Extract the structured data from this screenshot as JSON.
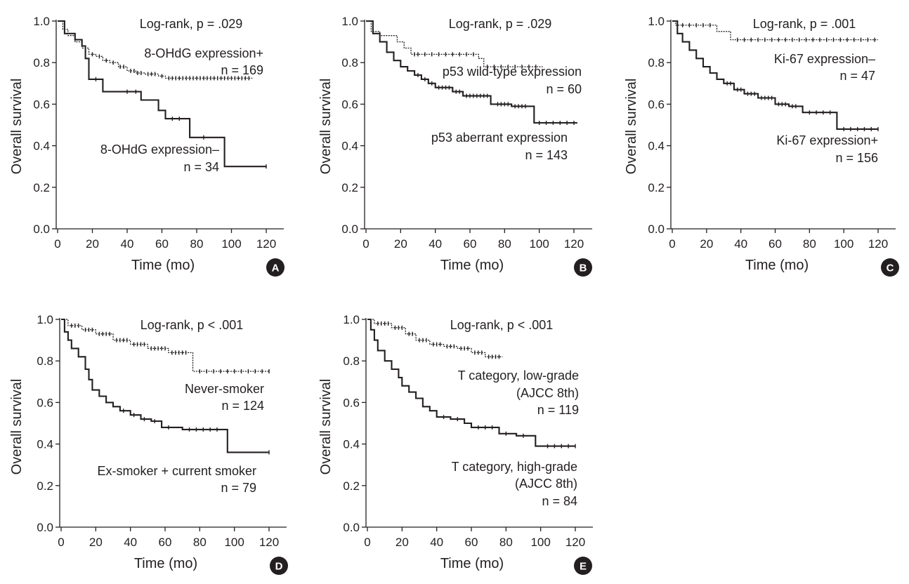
{
  "chart_data": [
    {
      "type": "line",
      "chart_style": "kaplan-meier",
      "panel": "A",
      "title": "",
      "xlabel": "Time (mo)",
      "ylabel": "Overall survival",
      "xlim": [
        0,
        130
      ],
      "ylim": [
        0,
        1.0
      ],
      "xticks": [
        "0",
        "20",
        "40",
        "60",
        "80",
        "100",
        "120"
      ],
      "yticks": [
        "0.0",
        "0.2",
        "0.4",
        "0.6",
        "0.8",
        "1.0"
      ],
      "annotations": [
        "Log-rank, p = .029"
      ],
      "series": [
        {
          "name": "8-OHdG expression+",
          "n_label": "n = 169",
          "style": "dotted",
          "steps": [
            [
              0,
              1.0
            ],
            [
              3,
              0.96
            ],
            [
              6,
              0.93
            ],
            [
              10,
              0.9
            ],
            [
              14,
              0.87
            ],
            [
              18,
              0.84
            ],
            [
              22,
              0.83
            ],
            [
              26,
              0.81
            ],
            [
              30,
              0.8
            ],
            [
              35,
              0.78
            ],
            [
              40,
              0.76
            ],
            [
              45,
              0.75
            ],
            [
              50,
              0.745
            ],
            [
              58,
              0.735
            ],
            [
              62,
              0.725
            ],
            [
              112,
              0.725
            ]
          ],
          "censors": [
            20,
            24,
            28,
            32,
            36,
            38,
            42,
            44,
            46,
            48,
            52,
            54,
            56,
            60,
            64,
            66,
            68,
            70,
            72,
            74,
            76,
            78,
            80,
            82,
            84,
            86,
            88,
            90,
            92,
            94,
            96,
            98,
            100,
            102,
            104,
            106,
            108,
            110
          ]
        },
        {
          "name": "8-OHdG expression–",
          "n_label": "n = 34",
          "style": "solid",
          "steps": [
            [
              0,
              1.0
            ],
            [
              4,
              0.94
            ],
            [
              10,
              0.91
            ],
            [
              14,
              0.88
            ],
            [
              16,
              0.82
            ],
            [
              18,
              0.72
            ],
            [
              26,
              0.66
            ],
            [
              48,
              0.62
            ],
            [
              58,
              0.57
            ],
            [
              62,
              0.53
            ],
            [
              76,
              0.44
            ],
            [
              96,
              0.3
            ],
            [
              120,
              0.3
            ]
          ],
          "censors": [
            22,
            40,
            45,
            66,
            70,
            84,
            120
          ]
        }
      ]
    },
    {
      "type": "line",
      "chart_style": "kaplan-meier",
      "panel": "B",
      "title": "",
      "xlabel": "Time (mo)",
      "ylabel": "Overall survival",
      "xlim": [
        0,
        130
      ],
      "ylim": [
        0,
        1.0
      ],
      "xticks": [
        "0",
        "20",
        "40",
        "60",
        "80",
        "100",
        "120"
      ],
      "yticks": [
        "0.0",
        "0.2",
        "0.4",
        "0.6",
        "0.8",
        "1.0"
      ],
      "annotations": [
        "Log-rank, p = .029"
      ],
      "series": [
        {
          "name": "p53 wild-type expression",
          "n_label": "n = 60",
          "style": "dotted",
          "steps": [
            [
              0,
              1.0
            ],
            [
              3,
              0.95
            ],
            [
              8,
              0.93
            ],
            [
              18,
              0.9
            ],
            [
              22,
              0.87
            ],
            [
              26,
              0.84
            ],
            [
              65,
              0.82
            ],
            [
              68,
              0.78
            ],
            [
              102,
              0.78
            ]
          ],
          "censors": [
            28,
            30,
            34,
            38,
            42,
            46,
            50,
            54,
            58,
            62,
            70,
            74,
            78,
            82,
            86,
            90,
            94,
            98
          ]
        },
        {
          "name": "p53 aberrant expression",
          "n_label": "n = 143",
          "style": "solid",
          "steps": [
            [
              0,
              1.0
            ],
            [
              4,
              0.94
            ],
            [
              8,
              0.9
            ],
            [
              12,
              0.85
            ],
            [
              16,
              0.81
            ],
            [
              20,
              0.78
            ],
            [
              24,
              0.76
            ],
            [
              28,
              0.74
            ],
            [
              32,
              0.72
            ],
            [
              36,
              0.7
            ],
            [
              40,
              0.68
            ],
            [
              50,
              0.66
            ],
            [
              56,
              0.64
            ],
            [
              72,
              0.6
            ],
            [
              84,
              0.59
            ],
            [
              97,
              0.51
            ],
            [
              122,
              0.51
            ]
          ],
          "censors": [
            30,
            34,
            38,
            42,
            44,
            46,
            48,
            52,
            54,
            58,
            60,
            62,
            64,
            66,
            68,
            70,
            76,
            78,
            80,
            82,
            86,
            88,
            90,
            92,
            100,
            104,
            108,
            112,
            116,
            120
          ]
        }
      ]
    },
    {
      "type": "line",
      "chart_style": "kaplan-meier",
      "panel": "C",
      "title": "",
      "xlabel": "Time (mo)",
      "ylabel": "Overall survival",
      "xlim": [
        0,
        130
      ],
      "ylim": [
        0,
        1.0
      ],
      "xticks": [
        "0",
        "20",
        "40",
        "60",
        "80",
        "100",
        "120"
      ],
      "yticks": [
        "0.0",
        "0.2",
        "0.4",
        "0.6",
        "0.8",
        "1.0"
      ],
      "annotations": [
        "Log-rank, p = .001"
      ],
      "series": [
        {
          "name": "Ki-67 expression–",
          "n_label": "n = 47",
          "style": "dotted",
          "steps": [
            [
              0,
              1.0
            ],
            [
              2,
              0.98
            ],
            [
              26,
              0.95
            ],
            [
              34,
              0.91
            ],
            [
              120,
              0.91
            ]
          ],
          "censors": [
            6,
            10,
            14,
            18,
            22,
            38,
            42,
            46,
            50,
            54,
            58,
            62,
            66,
            70,
            74,
            78,
            82,
            86,
            90,
            94,
            98,
            102,
            106,
            110,
            114,
            118
          ]
        },
        {
          "name": "Ki-67 expression+",
          "n_label": "n = 156",
          "style": "solid",
          "steps": [
            [
              0,
              1.0
            ],
            [
              3,
              0.94
            ],
            [
              6,
              0.9
            ],
            [
              10,
              0.86
            ],
            [
              14,
              0.82
            ],
            [
              18,
              0.78
            ],
            [
              22,
              0.75
            ],
            [
              26,
              0.72
            ],
            [
              30,
              0.7
            ],
            [
              36,
              0.67
            ],
            [
              42,
              0.65
            ],
            [
              50,
              0.63
            ],
            [
              60,
              0.6
            ],
            [
              68,
              0.59
            ],
            [
              76,
              0.56
            ],
            [
              96,
              0.48
            ],
            [
              120,
              0.48
            ]
          ],
          "censors": [
            32,
            34,
            38,
            40,
            44,
            46,
            48,
            52,
            54,
            56,
            58,
            62,
            64,
            66,
            70,
            72,
            80,
            84,
            88,
            92,
            100,
            104,
            108,
            112,
            116,
            120
          ]
        }
      ]
    },
    {
      "type": "line",
      "chart_style": "kaplan-meier",
      "panel": "D",
      "title": "",
      "xlabel": "Time (mo)",
      "ylabel": "Overall survival",
      "xlim": [
        0,
        130
      ],
      "ylim": [
        0,
        1.0
      ],
      "xticks": [
        "0",
        "20",
        "40",
        "60",
        "80",
        "100",
        "120"
      ],
      "yticks": [
        "0.0",
        "0.2",
        "0.4",
        "0.6",
        "0.8",
        "1.0"
      ],
      "annotations": [
        "Log-rank, p < .001"
      ],
      "series": [
        {
          "name": "Never-smoker",
          "n_label": "n = 124",
          "style": "dotted",
          "steps": [
            [
              0,
              1.0
            ],
            [
              4,
              0.97
            ],
            [
              12,
              0.95
            ],
            [
              20,
              0.93
            ],
            [
              30,
              0.9
            ],
            [
              40,
              0.88
            ],
            [
              50,
              0.86
            ],
            [
              62,
              0.84
            ],
            [
              76,
              0.75
            ],
            [
              120,
              0.75
            ]
          ],
          "censors": [
            6,
            8,
            10,
            14,
            16,
            18,
            22,
            24,
            26,
            28,
            32,
            34,
            36,
            38,
            42,
            44,
            46,
            48,
            52,
            54,
            56,
            58,
            60,
            64,
            66,
            68,
            70,
            72,
            80,
            84,
            88,
            92,
            96,
            100,
            104,
            108,
            112,
            116,
            120
          ]
        },
        {
          "name": "Ex-smoker + current smoker",
          "n_label": "n = 79",
          "style": "solid",
          "steps": [
            [
              0,
              1.0
            ],
            [
              2,
              0.94
            ],
            [
              4,
              0.9
            ],
            [
              6,
              0.86
            ],
            [
              10,
              0.82
            ],
            [
              14,
              0.76
            ],
            [
              16,
              0.71
            ],
            [
              18,
              0.66
            ],
            [
              22,
              0.63
            ],
            [
              26,
              0.6
            ],
            [
              30,
              0.58
            ],
            [
              34,
              0.56
            ],
            [
              40,
              0.54
            ],
            [
              46,
              0.52
            ],
            [
              52,
              0.51
            ],
            [
              58,
              0.48
            ],
            [
              66,
              0.48
            ],
            [
              70,
              0.47
            ],
            [
              96,
              0.36
            ],
            [
              120,
              0.36
            ]
          ],
          "censors": [
            36,
            42,
            48,
            54,
            62,
            74,
            78,
            82,
            86,
            90,
            120
          ]
        }
      ]
    },
    {
      "type": "line",
      "chart_style": "kaplan-meier",
      "panel": "E",
      "title": "",
      "xlabel": "Time (mo)",
      "ylabel": "Overall survival",
      "xlim": [
        0,
        130
      ],
      "ylim": [
        0,
        1.0
      ],
      "xticks": [
        "0",
        "20",
        "40",
        "60",
        "80",
        "100",
        "120"
      ],
      "yticks": [
        "0.0",
        "0.2",
        "0.4",
        "0.6",
        "0.8",
        "1.0"
      ],
      "annotations": [
        "Log-rank, p < .001"
      ],
      "series": [
        {
          "name": "T category, low-grade (AJCC 8th)",
          "n_label": "n = 119",
          "style": "dotted",
          "steps": [
            [
              0,
              1.0
            ],
            [
              4,
              0.98
            ],
            [
              14,
              0.96
            ],
            [
              22,
              0.93
            ],
            [
              28,
              0.9
            ],
            [
              36,
              0.88
            ],
            [
              44,
              0.87
            ],
            [
              52,
              0.86
            ],
            [
              60,
              0.84
            ],
            [
              68,
              0.82
            ],
            [
              78,
              0.82
            ]
          ],
          "censors": [
            6,
            8,
            10,
            12,
            16,
            18,
            20,
            24,
            26,
            30,
            32,
            34,
            38,
            40,
            42,
            46,
            48,
            50,
            54,
            56,
            58,
            62,
            64,
            66,
            70,
            72,
            74,
            76
          ]
        },
        {
          "name": "T category, high-grade (AJCC 8th)",
          "n_label": "n = 84",
          "style": "solid",
          "steps": [
            [
              0,
              1.0
            ],
            [
              2,
              0.95
            ],
            [
              4,
              0.9
            ],
            [
              6,
              0.85
            ],
            [
              10,
              0.8
            ],
            [
              14,
              0.76
            ],
            [
              18,
              0.72
            ],
            [
              20,
              0.68
            ],
            [
              24,
              0.65
            ],
            [
              28,
              0.62
            ],
            [
              32,
              0.58
            ],
            [
              36,
              0.56
            ],
            [
              40,
              0.53
            ],
            [
              48,
              0.52
            ],
            [
              56,
              0.5
            ],
            [
              60,
              0.48
            ],
            [
              76,
              0.45
            ],
            [
              86,
              0.44
            ],
            [
              97,
              0.39
            ],
            [
              120,
              0.39
            ]
          ],
          "censors": [
            44,
            52,
            64,
            68,
            72,
            80,
            90,
            104,
            108,
            112,
            116,
            120
          ]
        }
      ]
    }
  ],
  "panel_labels": [
    {
      "title": "Log-rank, p = .029",
      "labels": [
        "8-OHdG expression+",
        "n = 169",
        "8-OHdG expression–",
        "n = 34"
      ],
      "badge": "A"
    },
    {
      "title": "Log-rank, p = .029",
      "labels": [
        "p53 wild-type expression",
        "n = 60",
        "p53 aberrant expression",
        "n = 143"
      ],
      "badge": "B"
    },
    {
      "title": "Log-rank, p = .001",
      "labels": [
        "Ki-67 expression–",
        "n = 47",
        "Ki-67 expression+",
        "n = 156"
      ],
      "badge": "C"
    },
    {
      "title": "Log-rank, p < .001",
      "labels": [
        "Never-smoker",
        "n = 124",
        "Ex-smoker + current smoker",
        "n = 79"
      ],
      "badge": "D"
    },
    {
      "title": "Log-rank, p < .001",
      "labels": [
        "T category, low-grade",
        "(AJCC 8th)",
        "n = 119",
        "T category, high-grade",
        "(AJCC 8th)",
        "n = 84"
      ],
      "badge": "E"
    }
  ],
  "colors": {
    "ink": "#231f20",
    "badge": "#231f20",
    "badge_text": "#ffffff"
  }
}
